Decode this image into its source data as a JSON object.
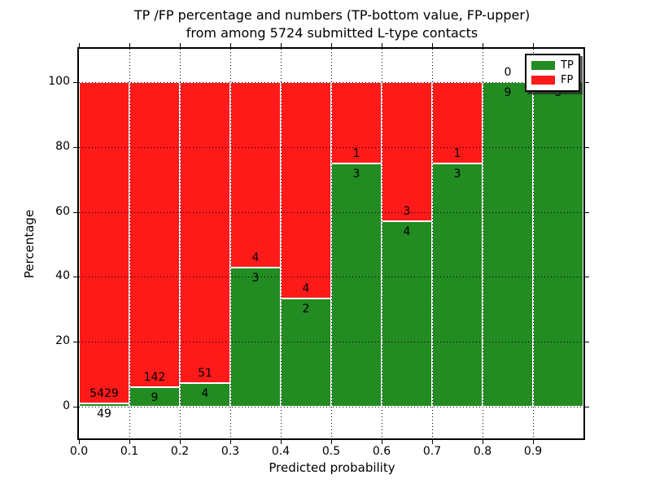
{
  "title": {
    "line1": "TP /FP percentage and numbers (TP-bottom value, FP-upper)",
    "line2": "from among 5724 submitted L-type contacts"
  },
  "axes": {
    "xlabel": "Predicted probability",
    "ylabel": "Percentage"
  },
  "legend": {
    "items": [
      {
        "label": "TP",
        "color": "#228b22"
      },
      {
        "label": "FP",
        "color": "#ff1a1a"
      }
    ],
    "position": "upper right"
  },
  "chart_data": {
    "type": "bar",
    "stacked": true,
    "normalized_to_percent": true,
    "title": "TP /FP percentage and numbers (TP-bottom value, FP-upper) from among 5724 submitted L-type contacts",
    "xlabel": "Predicted probability",
    "ylabel": "Percentage",
    "total_submitted": 5724,
    "bin_edges": [
      0.0,
      0.1,
      0.2,
      0.3,
      0.4,
      0.5,
      0.6,
      0.7,
      0.8,
      0.9,
      1.0
    ],
    "xtick_labels": [
      "0.0",
      "0.1",
      "0.2",
      "0.3",
      "0.4",
      "0.5",
      "0.6",
      "0.7",
      "0.8",
      "0.9"
    ],
    "yticks": [
      0,
      20,
      40,
      60,
      80,
      100
    ],
    "xlim": [
      0,
      1
    ],
    "ylim": [
      -11,
      110
    ],
    "grid": "dotted",
    "bar_edge_color": "#ffffff",
    "series": [
      {
        "name": "TP",
        "color": "#228b22",
        "counts": [
          49,
          9,
          4,
          3,
          2,
          3,
          4,
          3,
          9,
          3
        ],
        "percent": [
          0.89,
          5.96,
          7.27,
          42.86,
          33.33,
          75.0,
          57.14,
          75.0,
          100.0,
          100.0
        ]
      },
      {
        "name": "FP",
        "color": "#ff1a1a",
        "counts": [
          5429,
          142,
          51,
          4,
          4,
          1,
          3,
          1,
          0,
          0
        ],
        "percent": [
          99.11,
          94.04,
          92.73,
          57.14,
          66.67,
          25.0,
          42.86,
          25.0,
          0.0,
          0.0
        ]
      }
    ]
  }
}
